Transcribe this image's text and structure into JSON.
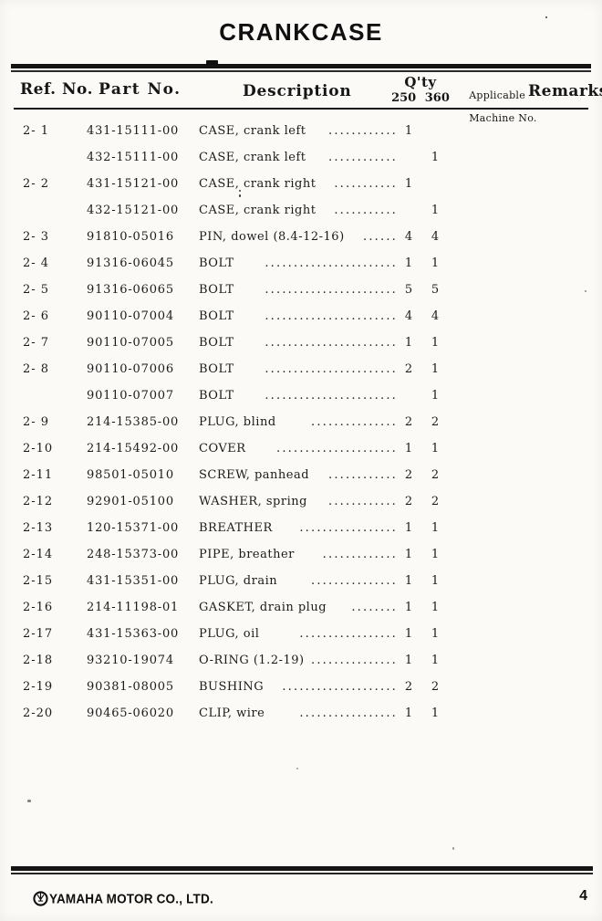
{
  "page": {
    "title": "CRANKCASE",
    "page_number": "4"
  },
  "footer": {
    "brand": "YAMAHA MOTOR CO., LTD.",
    "logo_icon": "yamaha-tuning-fork-logo"
  },
  "table": {
    "headers": {
      "ref_no": "Ref. No.",
      "part_no": "Part No.",
      "description": "Description",
      "qty": "Q'ty",
      "qty_models": "250 360",
      "applicable_line1": "Applicable",
      "applicable_line2": "Machine No.",
      "remarks": "Remarks"
    },
    "rows": [
      {
        "ref": "2- 1",
        "part": "431-15111-00",
        "desc": "CASE, crank left",
        "dots": "............",
        "q250": "1",
        "q360": ""
      },
      {
        "ref": "",
        "part": "432-15111-00",
        "desc": "CASE, crank left",
        "dots": "............",
        "q250": "",
        "q360": "1"
      },
      {
        "ref": "2- 2",
        "part": "431-15121-00",
        "desc": "CASE, crank right",
        "dots": "...........",
        "q250": "1",
        "q360": ""
      },
      {
        "ref": "",
        "part": "432-15121-00",
        "desc": "CASE, crank right",
        "dots": "...........",
        "q250": "",
        "q360": "1"
      },
      {
        "ref": "2- 3",
        "part": "91810-05016",
        "desc": "PIN, dowel (8.4-12-16)",
        "dots": "......",
        "q250": "4",
        "q360": "4"
      },
      {
        "ref": "2- 4",
        "part": "91316-06045",
        "desc": "BOLT",
        "dots": ".......................",
        "q250": "1",
        "q360": "1"
      },
      {
        "ref": "2- 5",
        "part": "91316-06065",
        "desc": "BOLT",
        "dots": ".......................",
        "q250": "5",
        "q360": "5"
      },
      {
        "ref": "2- 6",
        "part": "90110-07004",
        "desc": "BOLT",
        "dots": ".......................",
        "q250": "4",
        "q360": "4"
      },
      {
        "ref": "2- 7",
        "part": "90110-07005",
        "desc": "BOLT",
        "dots": ".......................",
        "q250": "1",
        "q360": "1"
      },
      {
        "ref": "2- 8",
        "part": "90110-07006",
        "desc": "BOLT",
        "dots": ".......................",
        "q250": "2",
        "q360": "1"
      },
      {
        "ref": "",
        "part": "90110-07007",
        "desc": "BOLT",
        "dots": ".......................",
        "q250": "",
        "q360": "1"
      },
      {
        "ref": "2- 9",
        "part": "214-15385-00",
        "desc": "PLUG, blind",
        "dots": "...............",
        "q250": "2",
        "q360": "2"
      },
      {
        "ref": "2-10",
        "part": "214-15492-00",
        "desc": "COVER",
        "dots": ".....................",
        "q250": "1",
        "q360": "1"
      },
      {
        "ref": "2-11",
        "part": "98501-05010",
        "desc": "SCREW, panhead",
        "dots": "............",
        "q250": "2",
        "q360": "2"
      },
      {
        "ref": "2-12",
        "part": "92901-05100",
        "desc": "WASHER, spring",
        "dots": "............",
        "q250": "2",
        "q360": "2"
      },
      {
        "ref": "2-13",
        "part": "120-15371-00",
        "desc": "BREATHER",
        "dots": ".................",
        "q250": "1",
        "q360": "1"
      },
      {
        "ref": "2-14",
        "part": "248-15373-00",
        "desc": "PIPE, breather",
        "dots": ".............",
        "q250": "1",
        "q360": "1"
      },
      {
        "ref": "2-15",
        "part": "431-15351-00",
        "desc": "PLUG, drain",
        "dots": "...............",
        "q250": "1",
        "q360": "1"
      },
      {
        "ref": "2-16",
        "part": "214-11198-01",
        "desc": "GASKET, drain plug",
        "dots": "........",
        "q250": "1",
        "q360": "1"
      },
      {
        "ref": "2-17",
        "part": "431-15363-00",
        "desc": "PLUG, oil",
        "dots": ".................",
        "q250": "1",
        "q360": "1"
      },
      {
        "ref": "2-18",
        "part": "93210-19074",
        "desc": "O-RING (1.2-19)",
        "dots": "...............",
        "q250": "1",
        "q360": "1"
      },
      {
        "ref": "2-19",
        "part": "90381-08005",
        "desc": "BUSHING",
        "dots": "....................",
        "q250": "2",
        "q360": "2"
      },
      {
        "ref": "2-20",
        "part": "90465-06020",
        "desc": "CLIP, wire",
        "dots": ".................",
        "q250": "1",
        "q360": "1"
      }
    ]
  }
}
